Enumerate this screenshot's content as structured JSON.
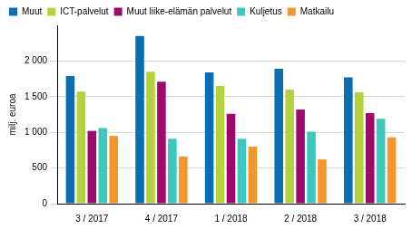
{
  "chart_data": {
    "type": "bar",
    "y_label": "milj. euroa",
    "categories": [
      "3 / 2017",
      "4 / 2017",
      "1 / 2018",
      "2 / 2018",
      "3 / 2018"
    ],
    "series": [
      {
        "name": "Muut",
        "color": "#0a6eb4",
        "values": [
          1790,
          2350,
          1840,
          1890,
          1770
        ]
      },
      {
        "name": "ICT-palvelut",
        "color": "#b4d23c",
        "values": [
          1570,
          1850,
          1650,
          1600,
          1560
        ]
      },
      {
        "name": "Muut liike-elämän palvelut",
        "color": "#a0086e",
        "values": [
          1020,
          1710,
          1260,
          1320,
          1270
        ]
      },
      {
        "name": "Kuljetus",
        "color": "#3cc8be",
        "values": [
          1060,
          910,
          910,
          1010,
          1190
        ]
      },
      {
        "name": "Matkailu",
        "color": "#f5962d",
        "values": [
          950,
          660,
          800,
          620,
          930
        ]
      }
    ],
    "ylim": [
      0,
      2500
    ],
    "yticks": [
      0,
      500,
      {
        "value": 1000,
        "label": "1 000"
      },
      {
        "value": 1500,
        "label": "1 500"
      },
      {
        "value": 2000,
        "label": "2 000"
      }
    ],
    "grid": true,
    "legend": "top"
  }
}
